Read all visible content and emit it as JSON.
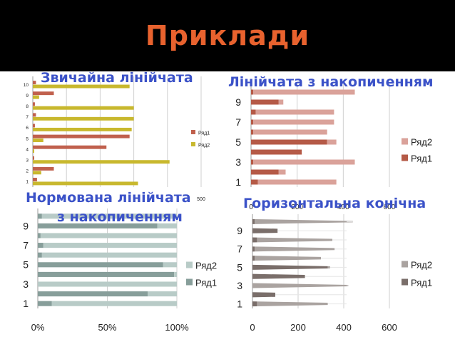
{
  "slide": {
    "title": "Приклади"
  },
  "subtitles": {
    "chart1": "Звичайна лінійчата",
    "chart2": "Лінійчата з накопиченням",
    "chart3_line1": "Нормована лінійчата",
    "chart3_line2": "з накопиченням",
    "chart4": "Горизонтальна конічна"
  },
  "colors": {
    "header_bg": "#000000",
    "title": "#e8622e",
    "subtitle": "#3b52c8"
  },
  "chart_data": [
    {
      "type": "bar",
      "orientation": "horizontal",
      "grouping": "clustered",
      "categories": [
        "1",
        "2",
        "3",
        "4",
        "5",
        "6",
        "7",
        "8",
        "9",
        "10"
      ],
      "series": [
        {
          "name": "Ряд1",
          "color": "#c0604d",
          "values": [
            20,
            100,
            0,
            350,
            460,
            10,
            15,
            10,
            100,
            15
          ]
        },
        {
          "name": "Ряд2",
          "color": "#c8b82e",
          "values": [
            500,
            40,
            650,
            0,
            50,
            470,
            480,
            480,
            30,
            460
          ]
        }
      ],
      "xlim": [
        0,
        800
      ],
      "xticks": [
        "",
        "",
        "",
        "",
        "",
        "500"
      ],
      "yticks": [
        "1",
        "2",
        "3",
        "4",
        "5",
        "6",
        "7",
        "8",
        "9",
        "10"
      ],
      "legend": "right",
      "grid": true
    },
    {
      "type": "bar",
      "orientation": "horizontal",
      "grouping": "stacked",
      "categories": [
        "1",
        "2",
        "3",
        "4",
        "5",
        "6",
        "7",
        "8",
        "9",
        "10"
      ],
      "series": [
        {
          "name": "Ряд1",
          "color": "#b55a47",
          "values": [
            30,
            120,
            10,
            220,
            330,
            10,
            10,
            20,
            120,
            10
          ]
        },
        {
          "name": "Ряд2",
          "color": "#daa29a",
          "values": [
            340,
            30,
            440,
            0,
            40,
            320,
            350,
            340,
            20,
            440
          ]
        }
      ],
      "xlim": [
        0,
        600
      ],
      "xticks": [
        "0",
        "200",
        "400",
        "600"
      ],
      "yticks": [
        "1",
        "3",
        "5",
        "7",
        "9"
      ],
      "legend": "right",
      "grid": true
    },
    {
      "type": "bar",
      "orientation": "horizontal",
      "grouping": "percent-stacked",
      "categories": [
        "1",
        "2",
        "3",
        "4",
        "5",
        "6",
        "7",
        "8",
        "9",
        "10"
      ],
      "series": [
        {
          "name": "Ряд1",
          "color": "#879e9a",
          "values": [
            10,
            79,
            0,
            98,
            90,
            3,
            4,
            2,
            86,
            3
          ]
        },
        {
          "name": "Ряд2",
          "color": "#b8cbc7",
          "values": [
            90,
            21,
            100,
            2,
            10,
            97,
            96,
            98,
            14,
            97
          ]
        }
      ],
      "xlim": [
        0,
        100
      ],
      "xticks": [
        "0%",
        "50%",
        "100%"
      ],
      "yticks": [
        "1",
        "3",
        "5",
        "7",
        "9"
      ],
      "legend": "right",
      "grid": true
    },
    {
      "type": "bar",
      "orientation": "horizontal",
      "grouping": "stacked-cone",
      "categories": [
        "1",
        "2",
        "3",
        "4",
        "5",
        "6",
        "7",
        "8",
        "9",
        "10"
      ],
      "series": [
        {
          "name": "Ряд1",
          "color": "#7a6e6a",
          "values": [
            20,
            100,
            0,
            230,
            330,
            10,
            10,
            20,
            110,
            10
          ]
        },
        {
          "name": "Ряд2",
          "color": "#aaa3a0",
          "values": [
            310,
            0,
            420,
            0,
            10,
            290,
            350,
            330,
            0,
            430
          ]
        }
      ],
      "xlim": [
        0,
        600
      ],
      "xticks": [
        "0",
        "200",
        "400",
        "600"
      ],
      "yticks": [
        "1",
        "3",
        "5",
        "7",
        "9"
      ],
      "legend": "right",
      "legend_order": [
        "Ряд2",
        "Ряд1"
      ],
      "grid": true
    }
  ]
}
